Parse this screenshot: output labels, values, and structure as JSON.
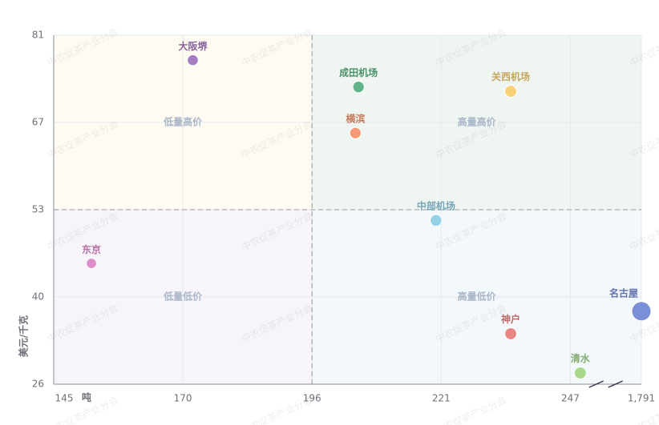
{
  "chart_data": {
    "type": "scatter",
    "x_label": "吨",
    "y_label": "美元/千克",
    "xticks": [
      145,
      170,
      196,
      221,
      247,
      {
        "value": 1791,
        "label": "1,791"
      }
    ],
    "xlim": [
      145,
      1791
    ],
    "yticks": [
      26,
      40,
      53,
      67,
      81
    ],
    "ylim": [
      26,
      81
    ],
    "axis_break": true,
    "grid": true,
    "quadrant_x": 196,
    "quadrant_y": 53,
    "quadrants": [
      {
        "label": "低量高价",
        "color": "#fffbf2"
      },
      {
        "label": "高量高价",
        "color": "#eff6f1"
      },
      {
        "label": "低量低价",
        "color": "#f7f5fb"
      },
      {
        "label": "高量低价",
        "color": "#f2f8fb"
      }
    ],
    "watermark": "中农促茶产业分会",
    "points": [
      {
        "name": "大阪堺",
        "x": 172,
        "y": 77,
        "color": "#a77dc2"
      },
      {
        "name": "成田机场",
        "x": 205,
        "y": 72.7,
        "color": "#5fb587"
      },
      {
        "name": "关西机场",
        "x": 235,
        "y": 72,
        "color": "#f8d076"
      },
      {
        "name": "横滨",
        "x": 204.4,
        "y": 65.3,
        "color": "#f59a76"
      },
      {
        "name": "中部机场",
        "x": 220,
        "y": 51.4,
        "color": "#94d0e6"
      },
      {
        "name": "东京",
        "x": 152.3,
        "y": 45,
        "color": "#e08ecb"
      },
      {
        "name": "名古屋",
        "x": 1791,
        "y": 37.7,
        "color": "#7b8ed8"
      },
      {
        "name": "神户",
        "x": 235,
        "y": 34.1,
        "color": "#ea8585"
      },
      {
        "name": "清水",
        "x": 249,
        "y": 27.8,
        "color": "#a9d88d"
      }
    ]
  }
}
